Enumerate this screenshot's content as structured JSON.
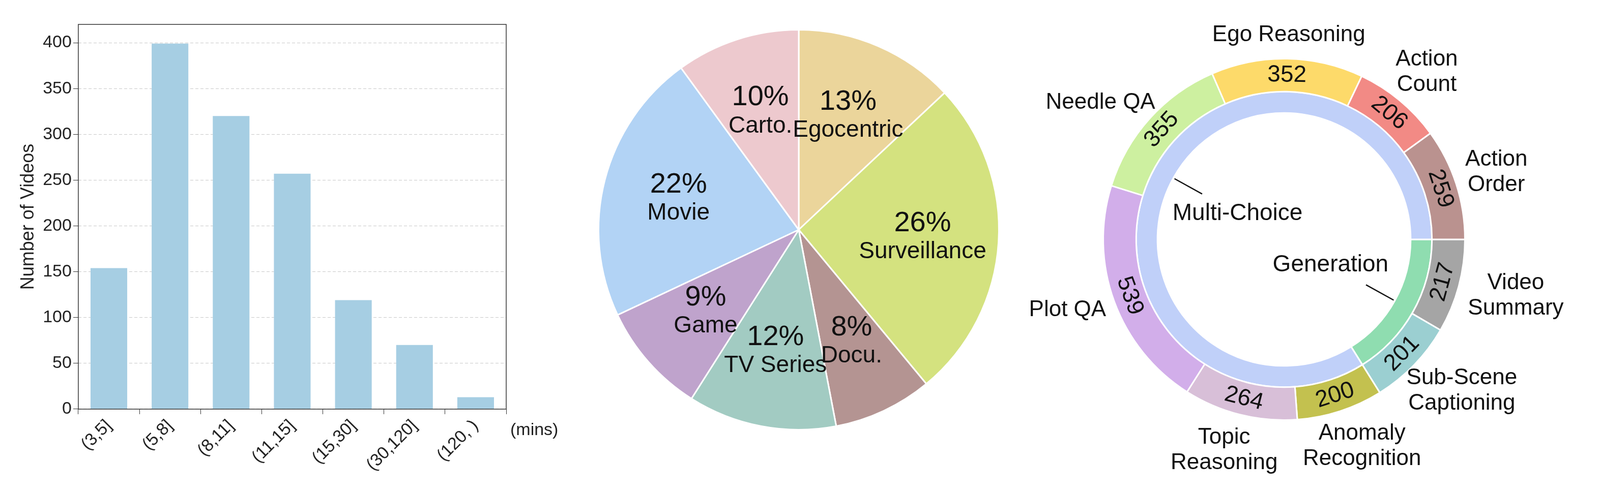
{
  "chart_data": [
    {
      "type": "bar",
      "categories": [
        "(3,5]",
        "(5,8]",
        "(8,11]",
        "(11,15]",
        "(15,30]",
        "(30,120]",
        "(120, )"
      ],
      "values": [
        154,
        399,
        320,
        257,
        119,
        70,
        13
      ],
      "color": "#a6cee3",
      "xlabel": "(mins)",
      "ylabel": "Number of Videos",
      "ylim": [
        0,
        420
      ],
      "yticks": [
        0,
        50,
        100,
        150,
        200,
        250,
        300,
        350,
        400
      ],
      "grid": true
    },
    {
      "type": "pie",
      "categories": [
        "Egocentric",
        "Surveillance",
        "Docu.",
        "TV Series",
        "Game",
        "Movie",
        "Carto."
      ],
      "values": [
        13,
        26,
        8,
        12,
        9,
        22,
        10
      ],
      "value_labels": [
        "13%",
        "26%",
        "8%",
        "12%",
        "9%",
        "22%",
        "10%"
      ],
      "colors": [
        "#ebd59b",
        "#d4e27f",
        "#b49492",
        "#a2cbc2",
        "#bfa3cc",
        "#b2d3f5",
        "#edc9ce"
      ],
      "data_labels": true
    },
    {
      "type": "doughnut",
      "outer": {
        "categories": [
          "Video Summary",
          "Sub-Scene Captioning",
          "Anomaly Recognition",
          "Topic Reasoning",
          "Plot QA",
          "Needle QA",
          "Ego Reasoning",
          "Action Count",
          "Action Order"
        ],
        "values": [
          217,
          201,
          200,
          264,
          539,
          355,
          352,
          206,
          259
        ],
        "colors": [
          "#a5a5a5",
          "#9bcfd1",
          "#c3c14f",
          "#d8bfd8",
          "#d2aeea",
          "#cdf0a0",
          "#fdda6a",
          "#f28a85",
          "#ba928f"
        ],
        "data_labels": true
      },
      "inner": {
        "categories": [
          "Generation",
          "Multi-Choice"
        ],
        "values": [
          418,
          2175
        ],
        "colors": [
          "#8fddb0",
          "#c0d0f9"
        ]
      }
    }
  ]
}
